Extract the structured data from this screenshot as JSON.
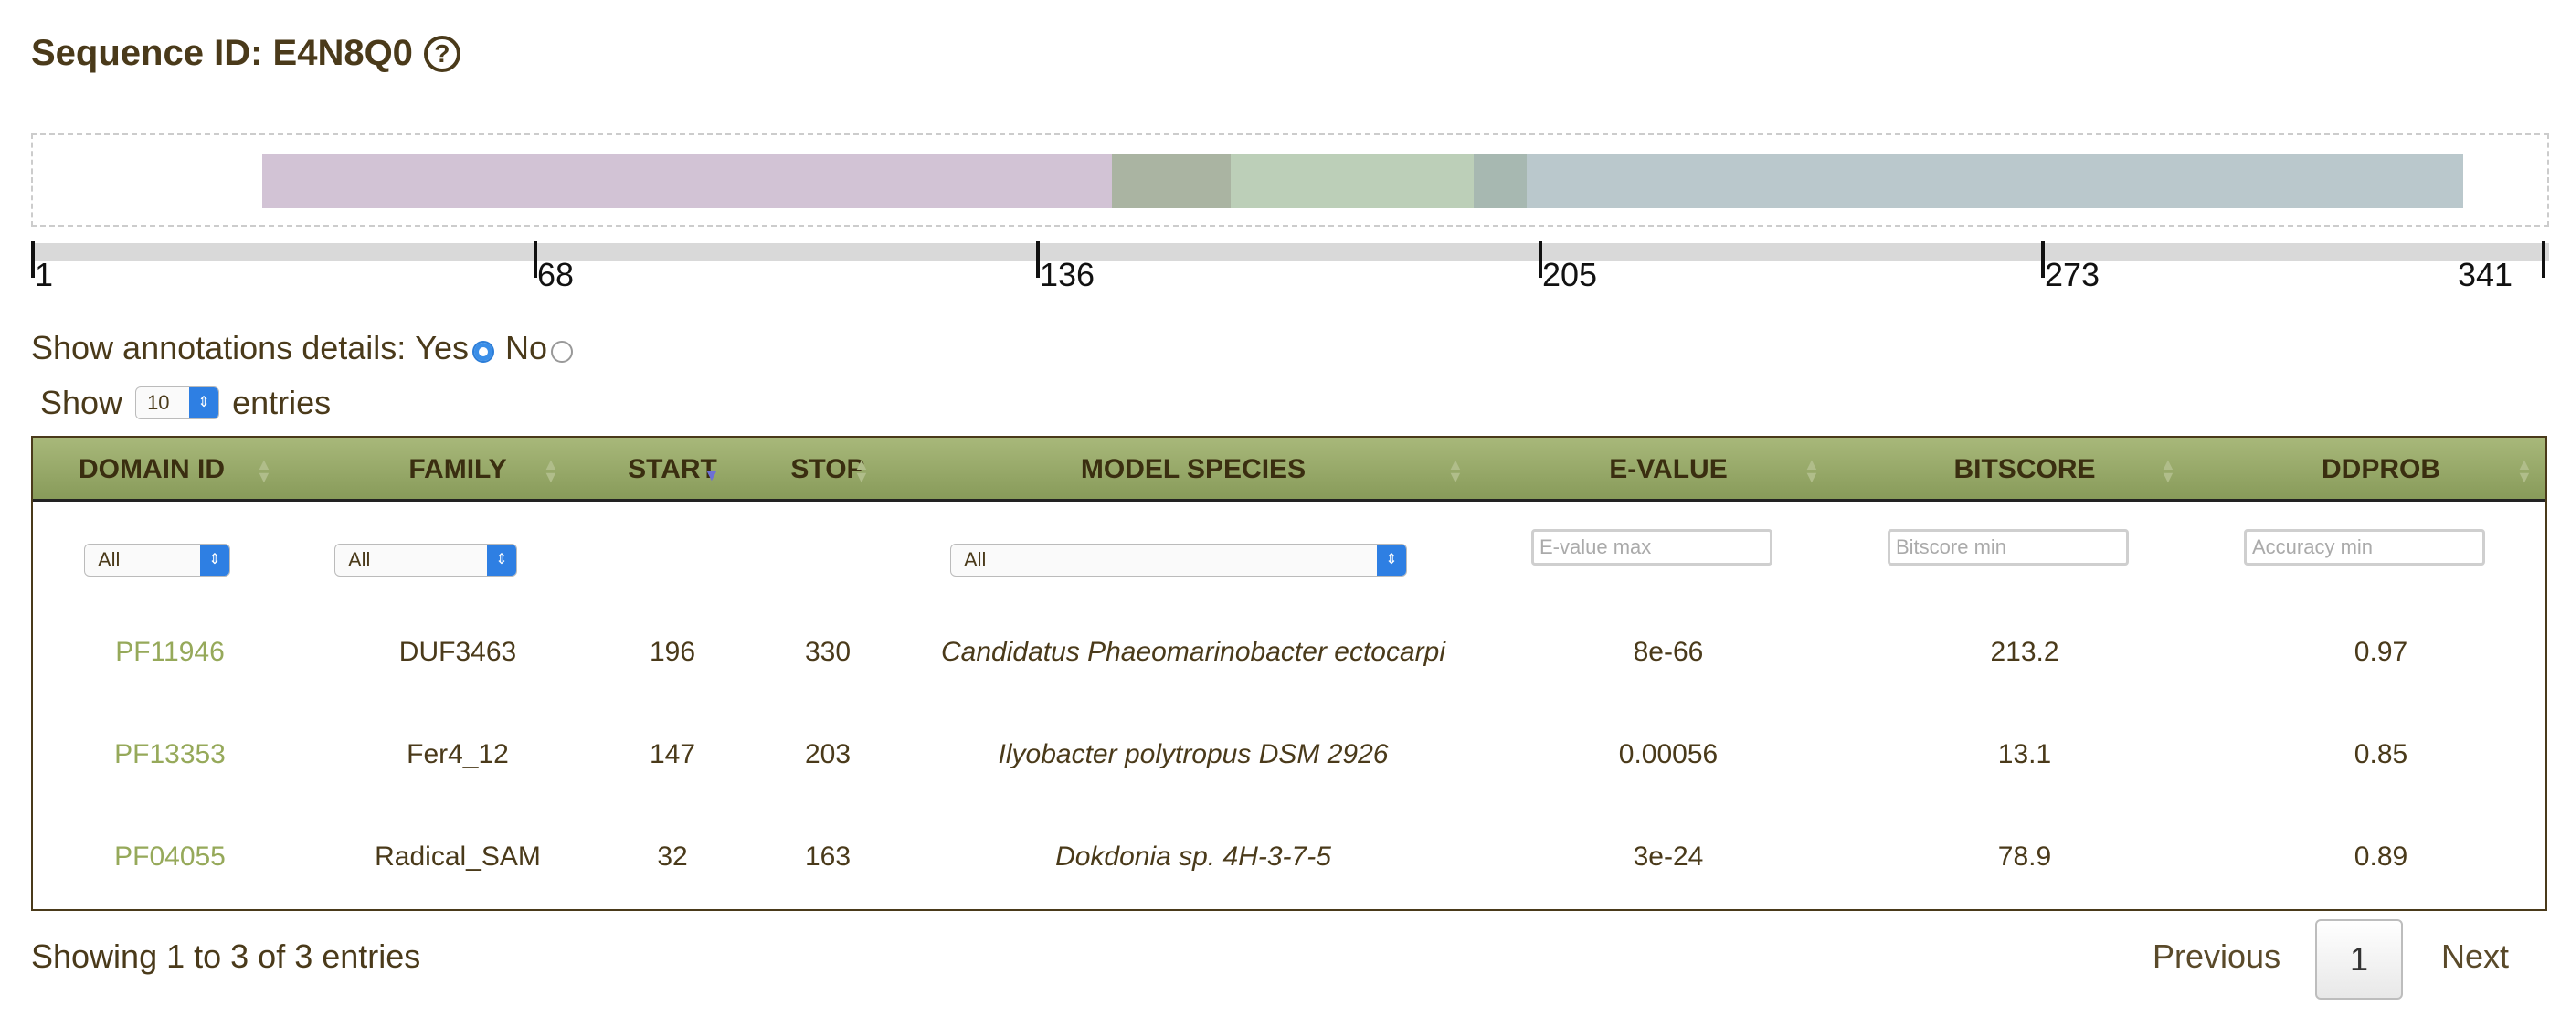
{
  "title": {
    "label": "Sequence ID: E4N8Q0",
    "help_icon": "question-circle-icon"
  },
  "domain_track": {
    "segments_colors": [
      "#d2c3d5",
      "#aab4a2",
      "#bccfb8",
      "#a7b8b1",
      "#bac8cc"
    ]
  },
  "ruler": {
    "ticks": [
      "1",
      "68",
      "136",
      "205",
      "273",
      "341"
    ]
  },
  "annotations": {
    "label": "Show annotations details:",
    "yes": "Yes",
    "no": "No",
    "selected": "Yes"
  },
  "length_menu": {
    "prefix": "Show",
    "value": "10",
    "suffix": "entries"
  },
  "table": {
    "columns": [
      "DOMAIN ID",
      "FAMILY",
      "START",
      "STOP",
      "MODEL SPECIES",
      "E-VALUE",
      "BITSCORE",
      "DDPROB"
    ],
    "filters": {
      "domain_id": "All",
      "family": "All",
      "species": "All",
      "evalue_placeholder": "E-value max",
      "bitscore_placeholder": "Bitscore min",
      "accuracy_placeholder": "Accuracy min"
    },
    "rows": [
      {
        "domain_id": "PF11946",
        "family": "DUF3463",
        "start": "196",
        "stop": "330",
        "species": "Candidatus Phaeomarinobacter ectocarpi",
        "evalue": "8e-66",
        "bitscore": "213.2",
        "ddprob": "0.97"
      },
      {
        "domain_id": "PF13353",
        "family": "Fer4_12",
        "start": "147",
        "stop": "203",
        "species": "Ilyobacter polytropus DSM 2926",
        "evalue": "0.00056",
        "bitscore": "13.1",
        "ddprob": "0.85"
      },
      {
        "domain_id": "PF04055",
        "family": "Radical_SAM",
        "start": "32",
        "stop": "163",
        "species": "Dokdonia sp. 4H-3-7-5",
        "evalue": "3e-24",
        "bitscore": "78.9",
        "ddprob": "0.89"
      }
    ]
  },
  "footer": {
    "info": "Showing 1 to 3 of 3 entries",
    "previous": "Previous",
    "page": "1",
    "next": "Next"
  }
}
